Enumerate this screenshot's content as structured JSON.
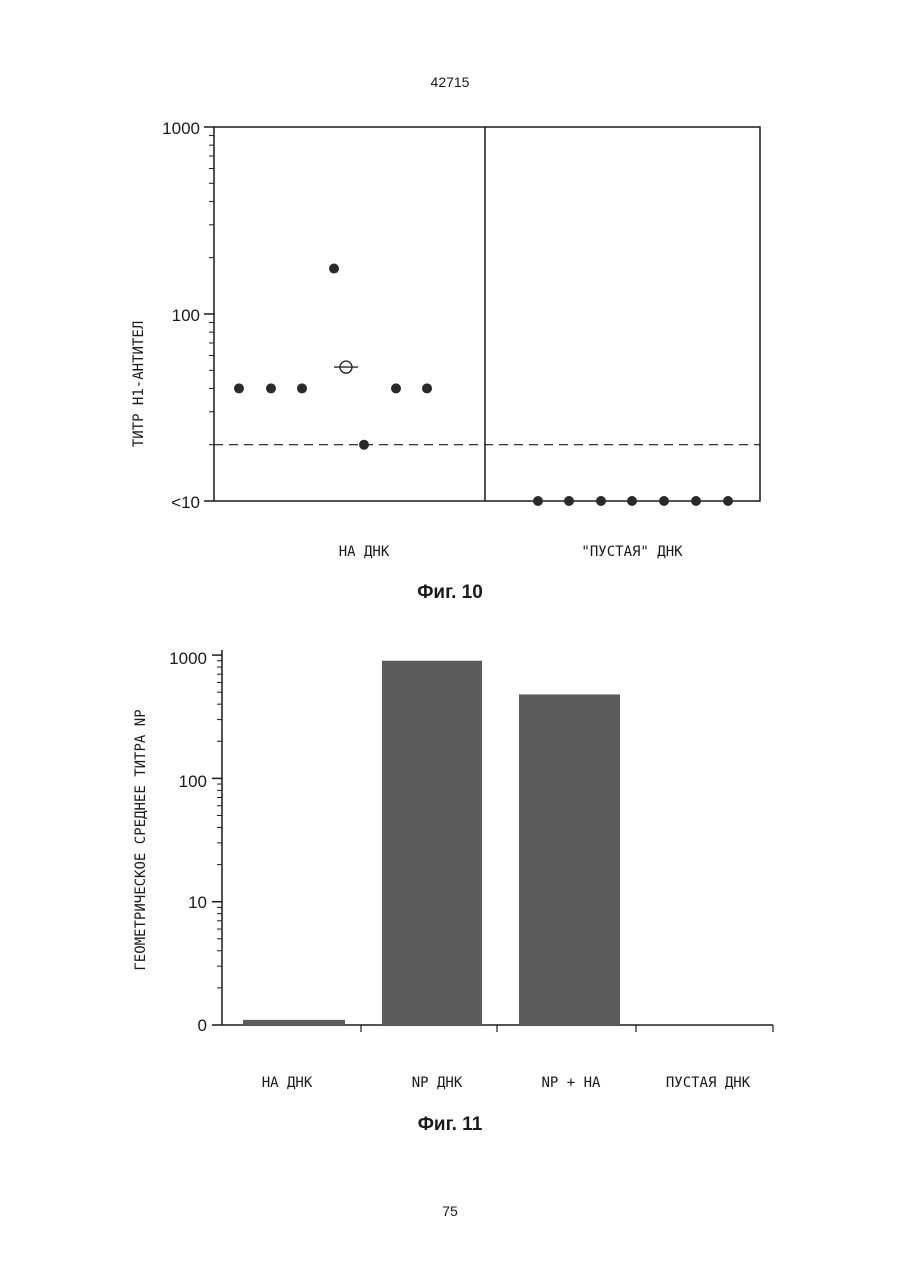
{
  "document": {
    "number": "42715",
    "page": "75"
  },
  "chart_data": [
    {
      "type": "scatter",
      "figure_label": "Фиг. 10",
      "ylabel": "ТИТР H1-АНТИТЕЛ",
      "yscale": "log",
      "ylim": [
        10,
        1000
      ],
      "ytick_labels": [
        "1000",
        "100",
        "<10"
      ],
      "threshold_line": {
        "style": "dashed",
        "value": 20
      },
      "groups": [
        {
          "label": "НА ДНК",
          "points": [
            40,
            40,
            40,
            175,
            20,
            40,
            40
          ],
          "mean": 52
        },
        {
          "label": "\"ПУСТАЯ\" ДНК",
          "points": [
            10,
            10,
            10,
            10,
            10,
            10,
            10
          ]
        }
      ],
      "colors": {
        "points": "#2a2a2a",
        "axes": "#1a1a1a"
      }
    },
    {
      "type": "bar",
      "figure_label": "Фиг. 11",
      "ylabel": "ГЕОМЕТРИЧЕСКОЕ СРЕДНЕЕ ТИТРА NP",
      "yscale": "log",
      "ytick_labels": [
        "1000",
        "100",
        "10",
        "0"
      ],
      "categories": [
        "HA ДНК",
        "NP ДНК",
        "NP + HA",
        "ПУСТАЯ ДНК"
      ],
      "values": [
        1.1,
        900,
        480,
        1
      ],
      "colors": {
        "bars": "#5c5c5c",
        "axes": "#1a1a1a"
      }
    }
  ]
}
